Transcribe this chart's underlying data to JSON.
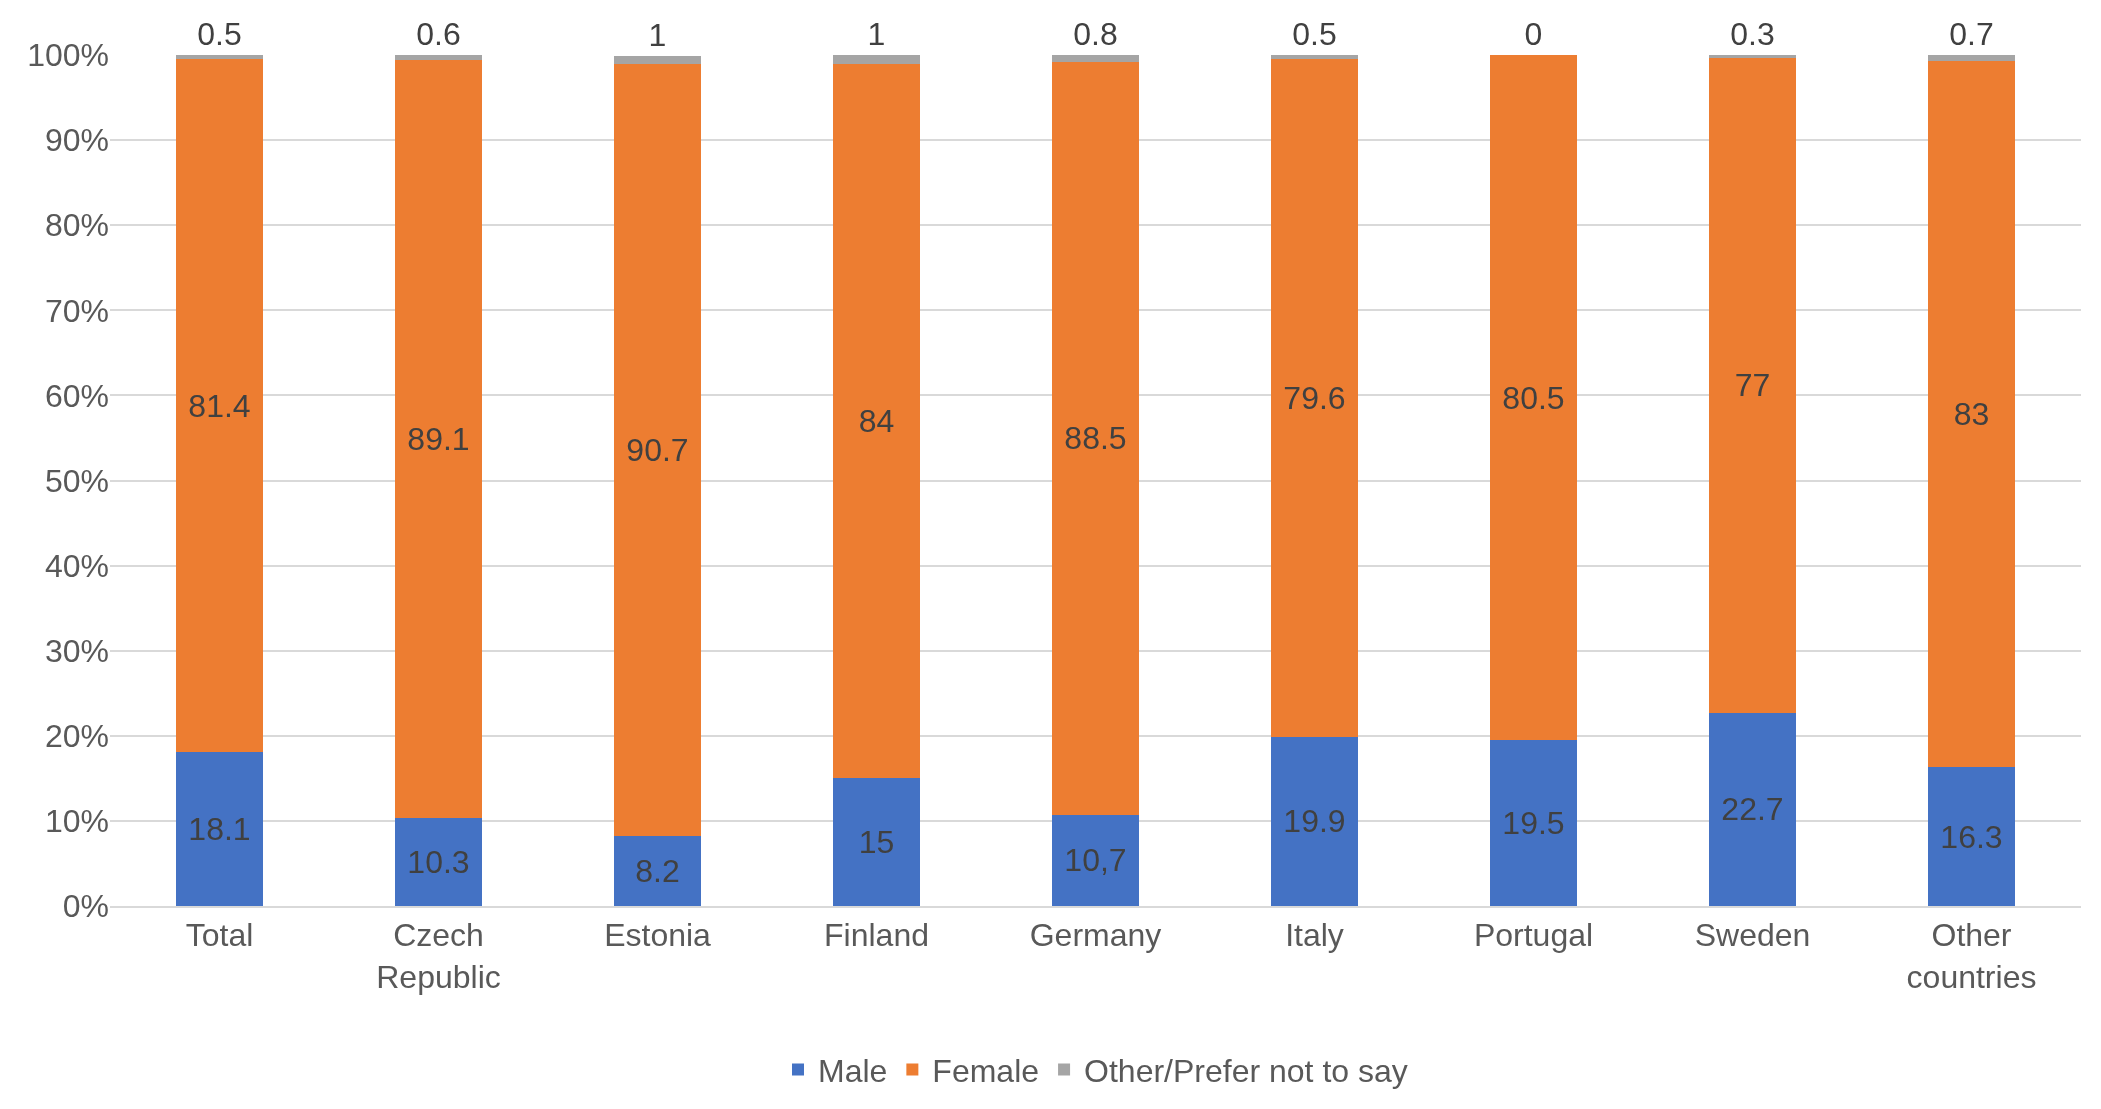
{
  "chart_data": {
    "type": "bar",
    "stacked": true,
    "categories": [
      "Total",
      "Czech Republic",
      "Estonia",
      "Finland",
      "Germany",
      "Italy",
      "Portugal",
      "Sweden",
      "Other countries"
    ],
    "series": [
      {
        "name": "Male",
        "color": "#4472c4",
        "values": [
          18.1,
          10.3,
          8.2,
          15,
          10.7,
          19.9,
          19.5,
          22.7,
          16.3
        ],
        "value_labels": [
          "18.1",
          "10.3",
          "8.2",
          "15",
          "10,7",
          "19.9",
          "19.5",
          "22.7",
          "16.3"
        ]
      },
      {
        "name": "Female",
        "color": "#ed7d31",
        "values": [
          81.4,
          89.1,
          90.7,
          84,
          88.5,
          79.6,
          80.5,
          77,
          83
        ],
        "value_labels": [
          "81.4",
          "89.1",
          "90.7",
          "84",
          "88.5",
          "79.6",
          "80.5",
          "77",
          "83"
        ]
      },
      {
        "name": "Other/Prefer not to say",
        "color": "#a5a5a5",
        "values": [
          0.5,
          0.6,
          1,
          1,
          0.8,
          0.5,
          0,
          0.3,
          0.7
        ],
        "value_labels": [
          "0.5",
          "0.6",
          "1",
          "1",
          "0.8",
          "0.5",
          "0",
          "0.3",
          "0.7"
        ]
      }
    ],
    "ylim": [
      0,
      100
    ],
    "yticks": [
      {
        "value": 0,
        "label": "0%"
      },
      {
        "value": 10,
        "label": "10%"
      },
      {
        "value": 20,
        "label": "20%"
      },
      {
        "value": 30,
        "label": "30%"
      },
      {
        "value": 40,
        "label": "40%"
      },
      {
        "value": 50,
        "label": "50%"
      },
      {
        "value": 60,
        "label": "60%"
      },
      {
        "value": 70,
        "label": "70%"
      },
      {
        "value": 80,
        "label": "80%"
      },
      {
        "value": 90,
        "label": "90%"
      },
      {
        "value": 100,
        "label": "100%"
      }
    ],
    "grid": "y",
    "legend": "bottom"
  }
}
